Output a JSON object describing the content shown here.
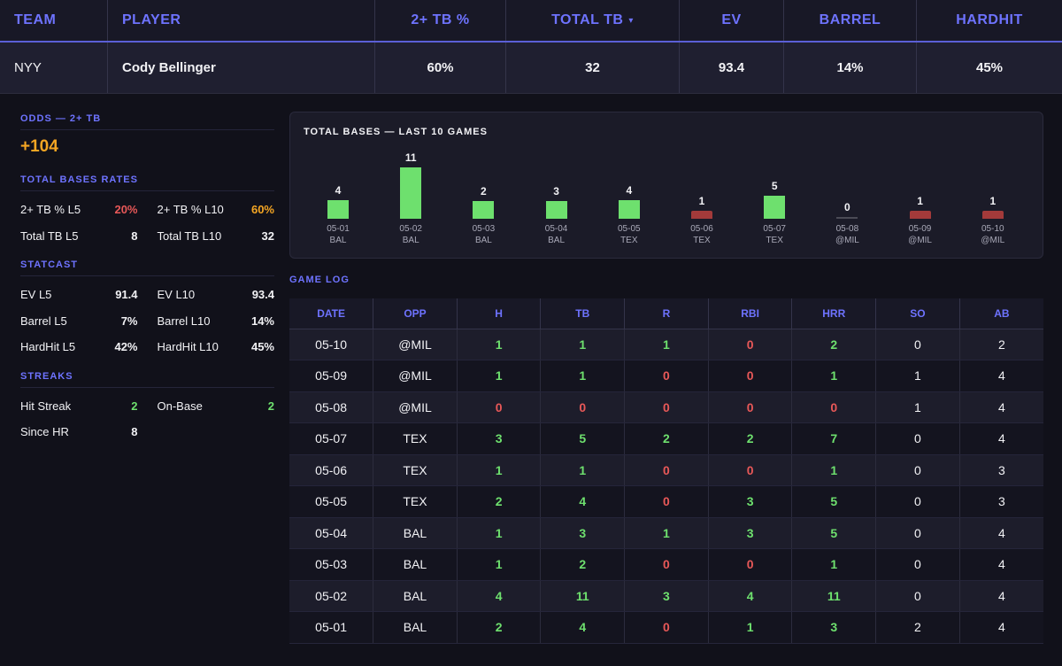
{
  "header": {
    "columns": [
      "TEAM",
      "PLAYER",
      "2+ TB %",
      "TOTAL TB",
      "EV",
      "BARREL",
      "HARDHIT"
    ],
    "sort_indicator": "▾",
    "row": {
      "team": "NYY",
      "player": "Cody Bellinger",
      "tb2_pct": "60%",
      "total_tb": "32",
      "ev": "93.4",
      "barrel": "14%",
      "hardhit": "45%"
    }
  },
  "odds": {
    "title": "ODDS — 2+ TB",
    "value": "+104"
  },
  "total_bases_rates": {
    "title": "TOTAL BASES RATES",
    "items": [
      {
        "label": "2+ TB % L5",
        "value": "20%",
        "color": "red"
      },
      {
        "label": "2+ TB % L10",
        "value": "60%",
        "color": "orange"
      },
      {
        "label": "Total TB L5",
        "value": "8",
        "color": "white"
      },
      {
        "label": "Total TB L10",
        "value": "32",
        "color": "white"
      }
    ]
  },
  "statcast": {
    "title": "STATCAST",
    "items": [
      {
        "label": "EV L5",
        "value": "91.4",
        "color": "white"
      },
      {
        "label": "EV L10",
        "value": "93.4",
        "color": "white"
      },
      {
        "label": "Barrel L5",
        "value": "7%",
        "color": "white"
      },
      {
        "label": "Barrel L10",
        "value": "14%",
        "color": "white"
      },
      {
        "label": "HardHit L5",
        "value": "42%",
        "color": "white"
      },
      {
        "label": "HardHit L10",
        "value": "45%",
        "color": "white"
      }
    ]
  },
  "streaks": {
    "title": "STREAKS",
    "items": [
      {
        "label": "Hit Streak",
        "value": "2",
        "color": "green"
      },
      {
        "label": "On-Base",
        "value": "2",
        "color": "green"
      },
      {
        "label": "Since HR",
        "value": "8",
        "color": "white"
      }
    ]
  },
  "colors": {
    "accent": "#6e73ff",
    "green": "#6ee06e",
    "red": "#e85858",
    "orange": "#f5a623",
    "bar_low": "#a33a3a",
    "bar_zero": "#4a4a55"
  },
  "chart_data": {
    "type": "bar",
    "title": "TOTAL BASES — LAST 10 GAMES",
    "threshold": 2,
    "categories": [
      "05-01",
      "05-02",
      "05-03",
      "05-04",
      "05-05",
      "05-06",
      "05-07",
      "05-08",
      "05-09",
      "05-10"
    ],
    "opponents": [
      "BAL",
      "BAL",
      "BAL",
      "BAL",
      "TEX",
      "TEX",
      "TEX",
      "@MIL",
      "@MIL",
      "@MIL"
    ],
    "values": [
      4,
      11,
      2,
      3,
      4,
      1,
      5,
      0,
      1,
      1
    ]
  },
  "game_log": {
    "title": "GAME LOG",
    "columns": [
      "DATE",
      "OPP",
      "H",
      "TB",
      "R",
      "RBI",
      "HRR",
      "SO",
      "AB"
    ],
    "rows": [
      [
        "05-10",
        "@MIL",
        "1",
        "1",
        "1",
        "0",
        "2",
        "0",
        "2"
      ],
      [
        "05-09",
        "@MIL",
        "1",
        "1",
        "0",
        "0",
        "1",
        "1",
        "4"
      ],
      [
        "05-08",
        "@MIL",
        "0",
        "0",
        "0",
        "0",
        "0",
        "1",
        "4"
      ],
      [
        "05-07",
        "TEX",
        "3",
        "5",
        "2",
        "2",
        "7",
        "0",
        "4"
      ],
      [
        "05-06",
        "TEX",
        "1",
        "1",
        "0",
        "0",
        "1",
        "0",
        "3"
      ],
      [
        "05-05",
        "TEX",
        "2",
        "4",
        "0",
        "3",
        "5",
        "0",
        "3"
      ],
      [
        "05-04",
        "BAL",
        "1",
        "3",
        "1",
        "3",
        "5",
        "0",
        "4"
      ],
      [
        "05-03",
        "BAL",
        "1",
        "2",
        "0",
        "0",
        "1",
        "0",
        "4"
      ],
      [
        "05-02",
        "BAL",
        "4",
        "11",
        "3",
        "4",
        "11",
        "0",
        "4"
      ],
      [
        "05-01",
        "BAL",
        "2",
        "4",
        "0",
        "1",
        "3",
        "2",
        "4"
      ]
    ]
  }
}
